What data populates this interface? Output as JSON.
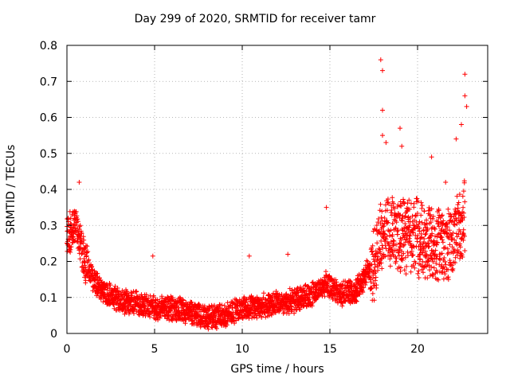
{
  "chart_data": {
    "type": "scatter",
    "title": "Day 299 of 2020, SRMTID for receiver tamr",
    "xlabel": "GPS time / hours",
    "ylabel": "SRMTID / TECUs",
    "xlim": [
      0,
      24
    ],
    "ylim": [
      0,
      0.8
    ],
    "xticks": [
      0,
      5,
      10,
      15,
      20
    ],
    "yticks": [
      0,
      0.1,
      0.2,
      0.3,
      0.4,
      0.5,
      0.6,
      0.7,
      0.8
    ],
    "xtick_labels": [
      "0",
      "5",
      "10",
      "15",
      "20"
    ],
    "ytick_labels": [
      "0",
      "0.1",
      "0.2",
      "0.3",
      "0.4",
      "0.5",
      "0.6",
      "0.7",
      "0.8"
    ],
    "grid": true,
    "marker": "+",
    "color": "#ff0000",
    "series": [
      {
        "name": "SRMTID",
        "trend": [
          {
            "x": 0.0,
            "y": 0.27
          },
          {
            "x": 0.5,
            "y": 0.3
          },
          {
            "x": 1.0,
            "y": 0.2
          },
          {
            "x": 1.5,
            "y": 0.15
          },
          {
            "x": 2.0,
            "y": 0.12
          },
          {
            "x": 3.0,
            "y": 0.09
          },
          {
            "x": 4.0,
            "y": 0.085
          },
          {
            "x": 5.0,
            "y": 0.07
          },
          {
            "x": 6.0,
            "y": 0.07
          },
          {
            "x": 7.0,
            "y": 0.06
          },
          {
            "x": 8.0,
            "y": 0.045
          },
          {
            "x": 9.0,
            "y": 0.05
          },
          {
            "x": 10.0,
            "y": 0.07
          },
          {
            "x": 11.0,
            "y": 0.075
          },
          {
            "x": 12.0,
            "y": 0.085
          },
          {
            "x": 13.0,
            "y": 0.09
          },
          {
            "x": 14.0,
            "y": 0.11
          },
          {
            "x": 14.8,
            "y": 0.14
          },
          {
            "x": 15.5,
            "y": 0.11
          },
          {
            "x": 16.5,
            "y": 0.12
          },
          {
            "x": 17.5,
            "y": 0.2
          },
          {
            "x": 18.0,
            "y": 0.28
          },
          {
            "x": 19.0,
            "y": 0.27
          },
          {
            "x": 20.0,
            "y": 0.27
          },
          {
            "x": 21.0,
            "y": 0.24
          },
          {
            "x": 22.0,
            "y": 0.26
          },
          {
            "x": 22.7,
            "y": 0.33
          }
        ],
        "outliers": [
          {
            "x": 0.7,
            "y": 0.42
          },
          {
            "x": 4.9,
            "y": 0.215
          },
          {
            "x": 10.4,
            "y": 0.215
          },
          {
            "x": 12.6,
            "y": 0.22
          },
          {
            "x": 14.8,
            "y": 0.35
          },
          {
            "x": 17.9,
            "y": 0.76
          },
          {
            "x": 18.0,
            "y": 0.73
          },
          {
            "x": 18.0,
            "y": 0.62
          },
          {
            "x": 18.0,
            "y": 0.55
          },
          {
            "x": 18.2,
            "y": 0.53
          },
          {
            "x": 19.0,
            "y": 0.57
          },
          {
            "x": 19.1,
            "y": 0.52
          },
          {
            "x": 20.8,
            "y": 0.49
          },
          {
            "x": 21.6,
            "y": 0.42
          },
          {
            "x": 22.2,
            "y": 0.54
          },
          {
            "x": 22.5,
            "y": 0.58
          },
          {
            "x": 22.7,
            "y": 0.72
          },
          {
            "x": 22.7,
            "y": 0.66
          },
          {
            "x": 22.8,
            "y": 0.63
          }
        ]
      }
    ]
  }
}
